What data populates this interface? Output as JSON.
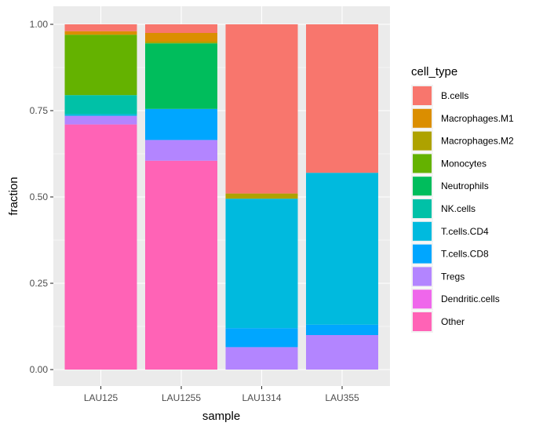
{
  "chart_data": {
    "type": "bar",
    "stacked": true,
    "xlabel": "sample",
    "ylabel": "fraction",
    "ylim": [
      0,
      1
    ],
    "yticks": [
      "0.00",
      "0.25",
      "0.50",
      "0.75",
      "1.00"
    ],
    "ytick_values": [
      0,
      0.25,
      0.5,
      0.75,
      1.0
    ],
    "grid": true,
    "legend_title": "cell_type",
    "legend_position": "right",
    "categories": [
      "LAU125",
      "LAU1255",
      "LAU1314",
      "LAU355"
    ],
    "stack_order_bottom_to_top": [
      "Other",
      "Dendritic.cells",
      "Tregs",
      "T.cells.CD8",
      "T.cells.CD4",
      "NK.cells",
      "Neutrophils",
      "Monocytes",
      "Macrophages.M2",
      "Macrophages.M1",
      "B.cells"
    ],
    "series": [
      {
        "name": "B.cells",
        "color": "#F8766D",
        "values": [
          0.02,
          0.025,
          0.49,
          0.43
        ]
      },
      {
        "name": "Macrophages.M1",
        "color": "#DB8E00",
        "values": [
          0.01,
          0.025,
          0.0,
          0.0
        ]
      },
      {
        "name": "Macrophages.M2",
        "color": "#AEA200",
        "values": [
          0.0,
          0.005,
          0.015,
          0.0
        ]
      },
      {
        "name": "Monocytes",
        "color": "#64B200",
        "values": [
          0.175,
          0.0,
          0.0,
          0.0
        ]
      },
      {
        "name": "Neutrophils",
        "color": "#00BD5C",
        "values": [
          0.0,
          0.19,
          0.0,
          0.0
        ]
      },
      {
        "name": "NK.cells",
        "color": "#00C1A7",
        "values": [
          0.055,
          0.0,
          0.0,
          0.0
        ]
      },
      {
        "name": "T.cells.CD4",
        "color": "#00BADE",
        "values": [
          0.005,
          0.0,
          0.375,
          0.44
        ]
      },
      {
        "name": "T.cells.CD8",
        "color": "#00A6FF",
        "values": [
          0.0,
          0.09,
          0.055,
          0.03
        ]
      },
      {
        "name": "Tregs",
        "color": "#B385FF",
        "values": [
          0.025,
          0.06,
          0.065,
          0.1
        ]
      },
      {
        "name": "Dendritic.cells",
        "color": "#EF67EB",
        "values": [
          0.0,
          0.0,
          0.0,
          0.0
        ]
      },
      {
        "name": "Other",
        "color": "#FF63B6",
        "values": [
          0.71,
          0.605,
          0.0,
          0.0
        ]
      }
    ]
  }
}
